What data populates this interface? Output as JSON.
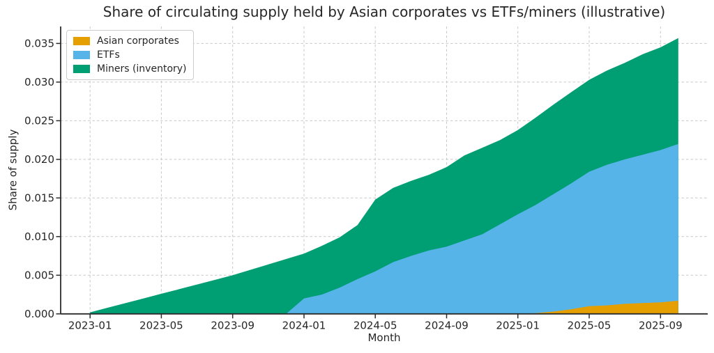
{
  "chart_data": {
    "type": "area",
    "stacked": true,
    "title": "Share of circulating supply held by Asian corporates vs ETFs/miners (illustrative)",
    "xlabel": "Month",
    "ylabel": "Share of supply",
    "grid": true,
    "legend_position": "upper left",
    "ylim": [
      0,
      0.0372
    ],
    "x": [
      "2023-01",
      "2023-02",
      "2023-03",
      "2023-04",
      "2023-05",
      "2023-06",
      "2023-07",
      "2023-08",
      "2023-09",
      "2023-10",
      "2023-11",
      "2023-12",
      "2024-01",
      "2024-02",
      "2024-03",
      "2024-04",
      "2024-05",
      "2024-06",
      "2024-07",
      "2024-08",
      "2024-09",
      "2024-10",
      "2024-11",
      "2024-12",
      "2025-01",
      "2025-02",
      "2025-03",
      "2025-04",
      "2025-05",
      "2025-06",
      "2025-07",
      "2025-08",
      "2025-09",
      "2025-10"
    ],
    "x_tick_indices": [
      0,
      4,
      8,
      12,
      16,
      20,
      24,
      28,
      32
    ],
    "x_tick_labels": [
      "2023-01",
      "2023-05",
      "2023-09",
      "2024-01",
      "2024-05",
      "2024-09",
      "2025-01",
      "2025-05",
      "2025-09"
    ],
    "y_ticks": [
      0.0,
      0.005,
      0.01,
      0.015,
      0.02,
      0.025,
      0.03,
      0.035
    ],
    "y_tick_labels": [
      "0.000",
      "0.005",
      "0.010",
      "0.015",
      "0.020",
      "0.025",
      "0.030",
      "0.035"
    ],
    "series": [
      {
        "name": "Asian corporates",
        "color": "#E69F00",
        "values": [
          0,
          0,
          0,
          0,
          0,
          0,
          0,
          0,
          0,
          0,
          0,
          0,
          0,
          0,
          0,
          0,
          0,
          0,
          0,
          0,
          0,
          0,
          0,
          0,
          0,
          0.0001,
          0.0003,
          0.0006,
          0.001,
          0.0011,
          0.0013,
          0.0014,
          0.0015,
          0.0017
        ]
      },
      {
        "name": "ETFs",
        "color": "#56B4E9",
        "values": [
          0,
          0,
          0,
          0,
          0,
          0,
          0,
          0,
          0,
          0,
          0,
          0,
          0.002,
          0.0025,
          0.0034,
          0.0045,
          0.0055,
          0.0067,
          0.0075,
          0.0082,
          0.0087,
          0.0095,
          0.0103,
          0.0116,
          0.0129,
          0.014,
          0.0152,
          0.0163,
          0.0174,
          0.0182,
          0.0187,
          0.0192,
          0.0197,
          0.0203
        ]
      },
      {
        "name": "Miners (inventory)",
        "color": "#009E73",
        "values": [
          0.0002,
          0.0008,
          0.0014,
          0.002,
          0.0026,
          0.0032,
          0.0038,
          0.0044,
          0.005,
          0.0057,
          0.0064,
          0.0071,
          0.0058,
          0.0063,
          0.0065,
          0.007,
          0.0093,
          0.0096,
          0.0097,
          0.0098,
          0.0103,
          0.011,
          0.0112,
          0.0109,
          0.0109,
          0.0113,
          0.0116,
          0.0118,
          0.0119,
          0.0122,
          0.0125,
          0.013,
          0.0133,
          0.0137
        ]
      }
    ]
  }
}
